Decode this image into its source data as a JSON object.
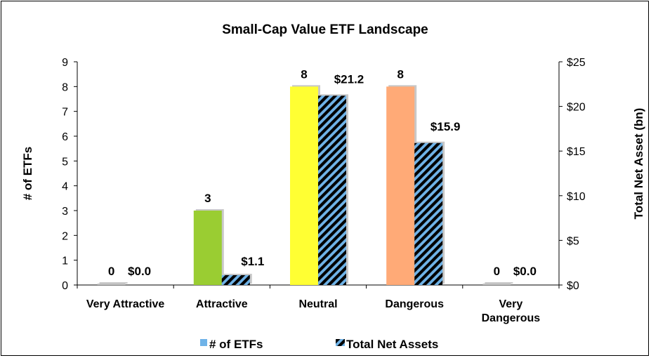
{
  "chart_data": {
    "type": "bar",
    "title": "Small-Cap Value ETF Landscape",
    "categories": [
      "Very Attractive",
      "Attractive",
      "Neutral",
      "Dangerous",
      "Very Dangerous"
    ],
    "category_lines": [
      [
        "Very Attractive"
      ],
      [
        "Attractive"
      ],
      [
        "Neutral"
      ],
      [
        "Dangerous"
      ],
      [
        "Very",
        "Dangerous"
      ]
    ],
    "series": [
      {
        "name": "# of ETFs",
        "axis": "left",
        "values": [
          0,
          3,
          8,
          8,
          0
        ],
        "value_labels": [
          "0",
          "3",
          "8",
          "8",
          "0"
        ],
        "colors": [
          "#C0C0C0",
          "#9ACD32",
          "#FFFF33",
          "#FFAA77",
          "#C0C0C0"
        ],
        "legend_color": "#6FB3E8"
      },
      {
        "name": "Total Net Assets",
        "axis": "right",
        "values": [
          0.0,
          1.1,
          21.2,
          15.9,
          0.0
        ],
        "value_labels": [
          "$0.0",
          "$1.1",
          "$21.2",
          "$15.9",
          "$0.0"
        ],
        "pattern": "diagonal-stripes",
        "colors": [
          "#000000",
          "#6FB3E8"
        ]
      }
    ],
    "ylabel": "# of ETFs",
    "ylim": [
      0,
      9
    ],
    "yticks": [
      "0",
      "1",
      "2",
      "3",
      "4",
      "5",
      "6",
      "7",
      "8",
      "9"
    ],
    "y2label": "Total Net Asset (bn)",
    "y2lim": [
      0,
      25
    ],
    "y2ticks": [
      "$0",
      "$5",
      "$10",
      "$15",
      "$20",
      "$25"
    ],
    "grid": false,
    "legend_position": "bottom"
  }
}
